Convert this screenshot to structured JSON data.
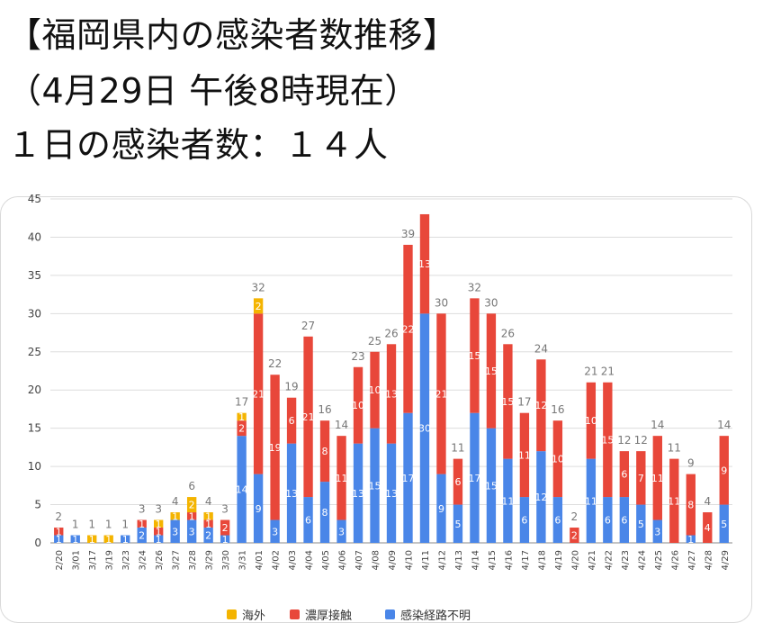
{
  "header": {
    "title": "【福岡県内の感染者数推移】",
    "subtitle": "（4月29日 午後8時現在）",
    "daily": "１日の感染者数：１４人"
  },
  "colors": {
    "overseas": "#f4b400",
    "close_contact": "#e8473a",
    "unknown": "#4a86e8",
    "total_label": "#777777",
    "grid": "#dddddd"
  },
  "chart_data": {
    "type": "bar",
    "stacked": true,
    "ylim": [
      0,
      45
    ],
    "yticks": [
      0,
      5,
      10,
      15,
      20,
      25,
      30,
      35,
      40,
      45
    ],
    "grid": true,
    "legend_position": "bottom",
    "categories": [
      "2/20",
      "3/01",
      "3/17",
      "3/19",
      "3/23",
      "3/24",
      "3/26",
      "3/27",
      "3/28",
      "3/29",
      "3/30",
      "3/31",
      "4/01",
      "4/02",
      "4/03",
      "4/04",
      "4/05",
      "4/06",
      "4/07",
      "4/08",
      "4/09",
      "4/10",
      "4/11",
      "4/12",
      "4/13",
      "4/14",
      "4/15",
      "4/16",
      "4/17",
      "4/18",
      "4/19",
      "4/20",
      "4/21",
      "4/22",
      "4/23",
      "4/24",
      "4/25",
      "4/26",
      "4/27",
      "4/28",
      "4/29"
    ],
    "series": [
      {
        "name": "感染経路不明",
        "color_key": "unknown",
        "values": [
          1,
          1,
          0,
          0,
          1,
          2,
          1,
          3,
          3,
          2,
          1,
          14,
          9,
          3,
          13,
          6,
          8,
          3,
          13,
          15,
          13,
          17,
          30,
          9,
          5,
          17,
          15,
          11,
          6,
          12,
          6,
          0,
          11,
          6,
          6,
          5,
          3,
          0,
          1,
          0,
          5
        ]
      },
      {
        "name": "濃厚接触",
        "color_key": "close_contact",
        "values": [
          1,
          0,
          0,
          0,
          0,
          1,
          1,
          0,
          1,
          1,
          2,
          2,
          21,
          19,
          6,
          21,
          8,
          11,
          10,
          10,
          13,
          22,
          13,
          21,
          6,
          15,
          15,
          15,
          11,
          12,
          10,
          2,
          10,
          15,
          6,
          7,
          11,
          11,
          8,
          4,
          9
        ]
      },
      {
        "name": "海外",
        "color_key": "overseas",
        "values": [
          0,
          0,
          1,
          1,
          0,
          0,
          1,
          1,
          2,
          1,
          0,
          1,
          2,
          0,
          0,
          0,
          0,
          0,
          0,
          0,
          0,
          0,
          0,
          0,
          0,
          0,
          0,
          0,
          0,
          0,
          0,
          0,
          0,
          0,
          0,
          0,
          0,
          0,
          0,
          0,
          0
        ]
      }
    ],
    "totals": [
      2,
      1,
      1,
      1,
      1,
      3,
      3,
      4,
      6,
      4,
      3,
      17,
      32,
      22,
      19,
      27,
      16,
      14,
      23,
      25,
      26,
      39,
      43,
      30,
      11,
      32,
      30,
      26,
      17,
      24,
      16,
      2,
      21,
      21,
      12,
      12,
      14,
      11,
      9,
      4,
      14
    ],
    "total_labels_shown": [
      true,
      true,
      true,
      true,
      true,
      true,
      true,
      true,
      true,
      true,
      true,
      true,
      true,
      true,
      true,
      true,
      true,
      true,
      true,
      true,
      true,
      true,
      false,
      true,
      true,
      true,
      true,
      true,
      true,
      true,
      true,
      true,
      true,
      true,
      true,
      true,
      true,
      true,
      true,
      true,
      true
    ],
    "legend": [
      "海外",
      "濃厚接触",
      "感染経路不明"
    ]
  }
}
